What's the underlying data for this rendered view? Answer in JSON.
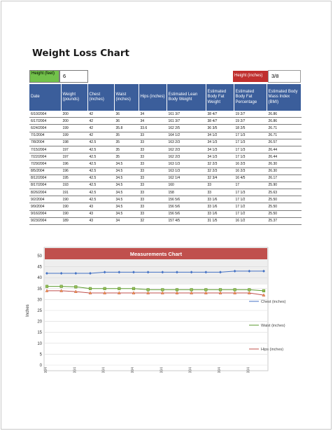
{
  "title": "Weight Loss Chart",
  "height_feet": {
    "label": "Height (feet)",
    "value": "6"
  },
  "height_inches": {
    "label": "Height (inches)",
    "value": "3/8"
  },
  "table": {
    "headers": [
      "Date",
      "Weight (pounds)",
      "Chest (inches)",
      "Waist (inches)",
      "Hips (inches)",
      "Estimated Lean Body Weight",
      "Estimated Body Fat Weight",
      "Estimated Body Fat Percentage",
      "Estimated Body Mass Index (BMI)"
    ],
    "rows": [
      [
        "6/10/2004",
        "200",
        "42",
        "36",
        "34",
        "161 3/7",
        "38 4/7",
        "19 2/7",
        "26.86"
      ],
      [
        "6/17/2004",
        "200",
        "42",
        "36",
        "34",
        "161 3/7",
        "38 4/7",
        "19 2/7",
        "26.86"
      ],
      [
        "6/24/2004",
        "199",
        "42",
        "35.8",
        "33.6",
        "162 2/5",
        "36 3/5",
        "18 2/5",
        "26.71"
      ],
      [
        "7/1/2004",
        "199",
        "42",
        "35",
        "33",
        "164 1/2",
        "34 1/2",
        "17 1/3",
        "26.71"
      ],
      [
        "7/8/2004",
        "198",
        "42.5",
        "35",
        "33",
        "163 2/3",
        "34 1/3",
        "17 1/3",
        "26.57"
      ],
      [
        "7/15/2004",
        "197",
        "42.5",
        "35",
        "33",
        "162 2/3",
        "34 1/3",
        "17 1/3",
        "26.44"
      ],
      [
        "7/22/2004",
        "197",
        "42.5",
        "35",
        "33",
        "162 2/3",
        "34 1/3",
        "17 1/3",
        "26.44"
      ],
      [
        "7/29/2004",
        "196",
        "42.5",
        "34.5",
        "33",
        "163 1/3",
        "32 2/3",
        "16 2/3",
        "26.30"
      ],
      [
        "8/5/2004",
        "196",
        "42.5",
        "34.5",
        "33",
        "163 1/3",
        "32 2/3",
        "16 2/3",
        "26.30"
      ],
      [
        "8/12/2004",
        "195",
        "42.5",
        "34.5",
        "33",
        "162 1/4",
        "32 3/4",
        "16 4/5",
        "26.17"
      ],
      [
        "8/17/2004",
        "193",
        "42.5",
        "34.5",
        "33",
        "160",
        "33",
        "17",
        "25.90"
      ],
      [
        "8/26/2004",
        "191",
        "42.5",
        "34.5",
        "33",
        "158",
        "33",
        "17 1/3",
        "25.63"
      ],
      [
        "9/2/2004",
        "190",
        "42.5",
        "34.5",
        "33",
        "156 5/6",
        "33 1/6",
        "17 1/2",
        "25.50"
      ],
      [
        "9/9/2004",
        "190",
        "43",
        "34.5",
        "33",
        "156 5/6",
        "33 1/6",
        "17 1/2",
        "25.50"
      ],
      [
        "9/16/2004",
        "190",
        "43",
        "34.5",
        "33",
        "156 5/6",
        "33 1/6",
        "17 1/2",
        "25.50"
      ],
      [
        "9/23/2004",
        "189",
        "43",
        "34",
        "32",
        "157 4/5",
        "31 1/5",
        "16 1/2",
        "25.37"
      ]
    ]
  },
  "chart_data": {
    "type": "line",
    "title": "Measurements Chart",
    "ylabel": "Inches",
    "ylim": [
      0,
      50
    ],
    "yticks": [
      0,
      5,
      10,
      15,
      20,
      25,
      30,
      35,
      40,
      45,
      50
    ],
    "x": [
      "6/10/2004",
      "6/17/2004",
      "6/24/2004",
      "7/1/2004",
      "7/8/2004",
      "7/15/2004",
      "7/22/2004",
      "7/29/2004",
      "8/5/2004",
      "8/12/2004",
      "8/17/2004",
      "8/26/2004",
      "9/2/2004",
      "9/9/2004",
      "9/16/2004",
      "9/23/2004"
    ],
    "xtick_labels": [
      "6/10/2004",
      "6/24/2004",
      "7/8/2004",
      "7/22/2004",
      "8/5/2004",
      "8/17/2004",
      "9/2/2004",
      "9/16/2004"
    ],
    "legend_position": "right",
    "series": [
      {
        "name": "Chest (inches)",
        "color": "#4472c4",
        "marker": "diamond",
        "values": [
          42,
          42,
          42,
          42,
          42.5,
          42.5,
          42.5,
          42.5,
          42.5,
          42.5,
          42.5,
          42.5,
          42.5,
          43,
          43,
          43
        ]
      },
      {
        "name": "Waist (inches)",
        "color": "#5a9a2e",
        "marker": "square",
        "values": [
          36,
          36,
          35.8,
          35,
          35,
          35,
          35,
          34.5,
          34.5,
          34.5,
          34.5,
          34.5,
          34.5,
          34.5,
          34.5,
          34
        ]
      },
      {
        "name": "Hips (inches)",
        "color": "#c0504d",
        "marker": "triangle",
        "values": [
          34,
          34,
          33.6,
          33,
          33,
          33,
          33,
          33,
          33,
          33,
          33,
          33,
          33,
          33,
          33,
          32
        ]
      }
    ]
  }
}
